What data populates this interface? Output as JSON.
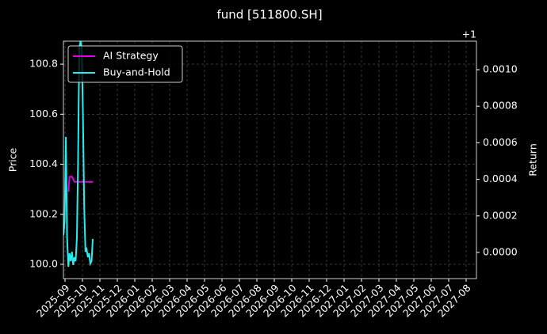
{
  "chart_data": {
    "type": "line",
    "title": "fund [511800.SH]",
    "ylabel": "Price",
    "y2label": "Return",
    "y2_offset_text": "+1",
    "xticks": [
      "2025-09",
      "2025-10",
      "2025-11",
      "2025-12",
      "2026-01",
      "2026-02",
      "2026-03",
      "2026-04",
      "2026-05",
      "2026-06",
      "2026-07",
      "2026-08",
      "2026-09",
      "2026-10",
      "2026-11",
      "2026-12",
      "2027-01",
      "2027-02",
      "2027-03",
      "2027-04",
      "2027-05",
      "2027-06",
      "2027-07",
      "2027-08"
    ],
    "ylim": [
      99.943,
      100.892
    ],
    "yticks": [
      {
        "value": 100,
        "label": "100.0"
      },
      100.2,
      100.4,
      100.6,
      100.8
    ],
    "y2lim": [
      0.999857,
      1.001156
    ],
    "y2ticks": [
      {
        "value": 1.0,
        "label": "0.0000"
      },
      {
        "value": 1.0002,
        "label": "0.0002"
      },
      {
        "value": 1.0004,
        "label": "0.0004"
      },
      {
        "value": 1.0006,
        "label": "0.0006"
      },
      {
        "value": 1.0008,
        "label": "0.0008"
      },
      {
        "value": 1.001,
        "label": "0.0010"
      }
    ],
    "grid": true,
    "legend": "upper left",
    "series": [
      {
        "name": "AI Strategy",
        "color": "#e000e0",
        "values": [
          null,
          null,
          null,
          null,
          100.29,
          100.35,
          100.35,
          100.35,
          100.34,
          100.33,
          100.33,
          100.33,
          100.33,
          100.33,
          100.33,
          100.33,
          100.33,
          100.33,
          100.33,
          100.33,
          100.33,
          100.33,
          100.33,
          100.33,
          100.33
        ]
      },
      {
        "name": "Buy-and-Hold",
        "color": "#22f0f0",
        "axis": "y2",
        "values": [
          1.000095,
          1.000169,
          1.000632,
          1.000082,
          0.999922,
          0.999996,
          0.999952,
          1.000004,
          0.999931,
          0.999974,
          0.999952,
          1.000082,
          1.000515,
          1.001121,
          1.001156,
          1.001121,
          1.000732,
          1.000255,
          1.000004,
          1.000017,
          0.999974,
          0.999996,
          0.999939,
          0.999952,
          1.000074
        ]
      }
    ]
  }
}
